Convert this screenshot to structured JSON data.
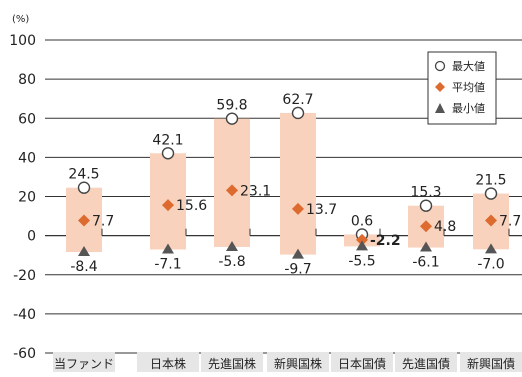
{
  "chart_data": {
    "type": "range-bar",
    "unit_label": "(%)",
    "categories": [
      "当ファンド",
      "日本株",
      "先進国株",
      "新興国株",
      "日本国債",
      "先進国債",
      "新興国債"
    ],
    "series": [
      {
        "name": "最大値",
        "values": [
          24.5,
          42.1,
          59.8,
          62.7,
          0.6,
          15.3,
          21.5
        ]
      },
      {
        "name": "平均値",
        "values": [
          7.7,
          15.6,
          23.1,
          13.7,
          -2.2,
          4.8,
          7.7
        ]
      },
      {
        "name": "最小値",
        "values": [
          -8.4,
          -7.1,
          -5.8,
          -9.7,
          -5.5,
          -6.1,
          -7.0
        ]
      }
    ],
    "max_labels": [
      "24.5",
      "42.1",
      "59.8",
      "62.7",
      "0.6",
      "15.3",
      "21.5"
    ],
    "avg_labels": [
      "7.7",
      "15.6",
      "23.1",
      "13.7",
      "-2.2",
      "4.8",
      "7.7"
    ],
    "min_labels": [
      "-8.4",
      "-7.1",
      "-5.8",
      "-9.7",
      "-5.5",
      "-6.1",
      "-7.0"
    ],
    "y_ticks": [
      100,
      80,
      60,
      40,
      20,
      0,
      -20,
      -40,
      -60
    ],
    "y_tick_labels": [
      "100",
      "80",
      "60",
      "40",
      "20",
      "0",
      "-20",
      "-40",
      "-60"
    ],
    "ylim": [
      -60,
      100
    ],
    "grid": true,
    "legend": {
      "position": "top-right",
      "items": [
        "最大値",
        "平均値",
        "最小値"
      ]
    },
    "colors": {
      "bar": "#f8d2bd",
      "avg_marker": "#dd6a2e",
      "min_marker": "#555555",
      "max_marker_fill": "#ffffff",
      "max_marker_stroke": "#444444",
      "grid": "#333333",
      "category_bg": "#e6e6e6",
      "text": "#222222"
    }
  }
}
